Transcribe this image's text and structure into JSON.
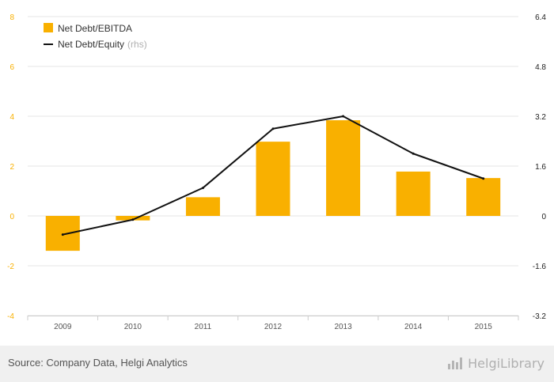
{
  "chart_data": {
    "type": "bar+line",
    "categories": [
      "2009",
      "2010",
      "2011",
      "2012",
      "2013",
      "2014",
      "2015"
    ],
    "series": [
      {
        "name": "Net Debt/EBITDA",
        "type": "bar",
        "axis": "left",
        "color": "#f9b000",
        "values": [
          -1.4,
          -0.18,
          0.75,
          2.98,
          3.84,
          1.78,
          1.52
        ]
      },
      {
        "name": "Net Debt/Equity",
        "type": "line",
        "axis": "right",
        "color": "#111111",
        "values": [
          -0.6,
          -0.12,
          0.9,
          2.8,
          3.2,
          2.0,
          1.2
        ]
      }
    ],
    "y_left": {
      "min": -4,
      "max": 8,
      "ticks": [
        "8",
        "6",
        "4",
        "2",
        "0",
        "-2",
        "-4"
      ],
      "tick_values": [
        8,
        6,
        4,
        2,
        0,
        -2,
        -4
      ],
      "color": "#f9b000"
    },
    "y_right": {
      "min": -3.2,
      "max": 6.4,
      "ticks": [
        "6.4",
        "4.8",
        "3.2",
        "1.6",
        "0",
        "-1.6",
        "-3.2"
      ],
      "tick_values": [
        6.4,
        4.8,
        3.2,
        1.6,
        0,
        -1.6,
        -3.2
      ],
      "color": "#222222"
    },
    "legend": [
      {
        "label": "Net Debt/EBITDA",
        "suffix": ""
      },
      {
        "label": "Net Debt/Equity",
        "suffix": "(rhs)"
      }
    ],
    "grid": true,
    "legend_position": "top-left"
  },
  "footer": {
    "source": "Source: Company Data, Helgi Analytics",
    "logo": "HelgiLibrary",
    "logo_icon": "bar-chart-logo-icon"
  }
}
